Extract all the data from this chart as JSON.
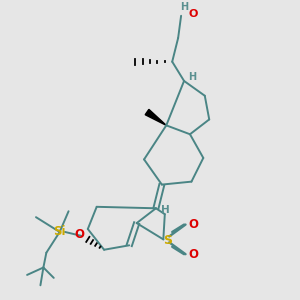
{
  "bg_color": "#e6e6e6",
  "bond_color": "#4a8585",
  "bond_width": 1.4,
  "col_O": "#dd0000",
  "col_S": "#ccaa00",
  "col_Si": "#ccaa00",
  "col_H": "#5a9090",
  "figsize": [
    3.0,
    3.0
  ],
  "dpi": 100,
  "xlim": [
    0,
    10
  ],
  "ylim": [
    0,
    10
  ]
}
